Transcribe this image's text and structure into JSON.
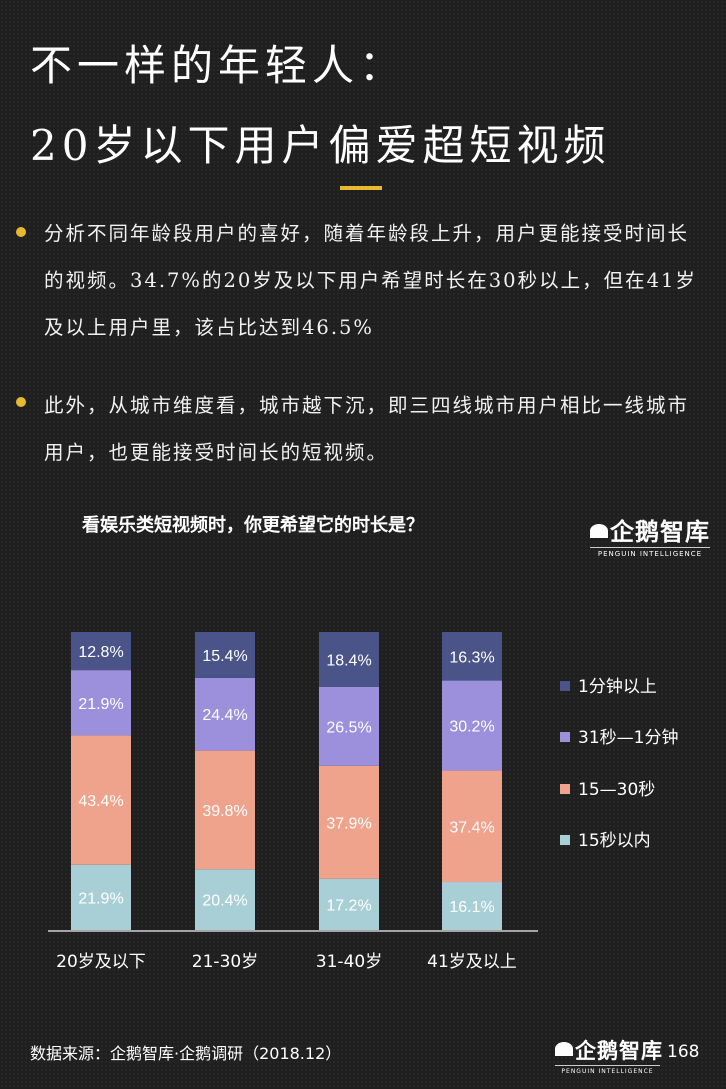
{
  "title": {
    "line1": "不一样的年轻人：",
    "line2": "20岁以下用户偏爱超短视频"
  },
  "bullets": [
    "分析不同年龄段用户的喜好，随着年龄段上升，用户更能接受时间长的视频。34.7%的20岁及以下用户希望时长在30秒以上，但在41岁及以上用户里，该占比达到46.5%",
    "此外，从城市维度看，城市越下沉，即三四线城市用户相比一线城市用户，也更能接受时间长的短视频。"
  ],
  "logo": {
    "name": "企鹅智库",
    "tagline": "PENGUIN INTELLIGENCE"
  },
  "footer": {
    "source": "数据来源：企鹅智库·企鹅调研（2018.12）",
    "page": "168"
  },
  "colors": {
    "accent": "#e8b92f",
    "series": [
      "#a8cfd6",
      "#f0a38c",
      "#9c8fdc",
      "#4a5488"
    ]
  },
  "chart_data": {
    "type": "bar",
    "stacked": true,
    "percent": true,
    "title": "看娱乐类短视频时，你更希望它的时长是？",
    "categories": [
      "20岁及以下",
      "21-30岁",
      "31-40岁",
      "41岁及以上"
    ],
    "series": [
      {
        "name": "15秒以内",
        "values": [
          21.9,
          20.4,
          17.2,
          16.1
        ],
        "labels": [
          "21.9%",
          "20.4%",
          "17.2%",
          "16.1%"
        ]
      },
      {
        "name": "15—30秒",
        "values": [
          43.4,
          39.8,
          37.9,
          37.4
        ],
        "labels": [
          "43.4%",
          "39.8%",
          "37.9%",
          "37.4%"
        ]
      },
      {
        "name": "31秒—1分钟",
        "values": [
          21.9,
          24.4,
          26.5,
          30.2
        ],
        "labels": [
          "21.9%",
          "24.4%",
          "26.5%",
          "30.2%"
        ]
      },
      {
        "name": "1分钟以上",
        "values": [
          12.8,
          15.4,
          18.4,
          16.3
        ],
        "labels": [
          "12.8%",
          "15.4%",
          "18.4%",
          "16.3%"
        ]
      }
    ],
    "legend_position": "right",
    "ylim": [
      0,
      100
    ],
    "grid": false
  }
}
